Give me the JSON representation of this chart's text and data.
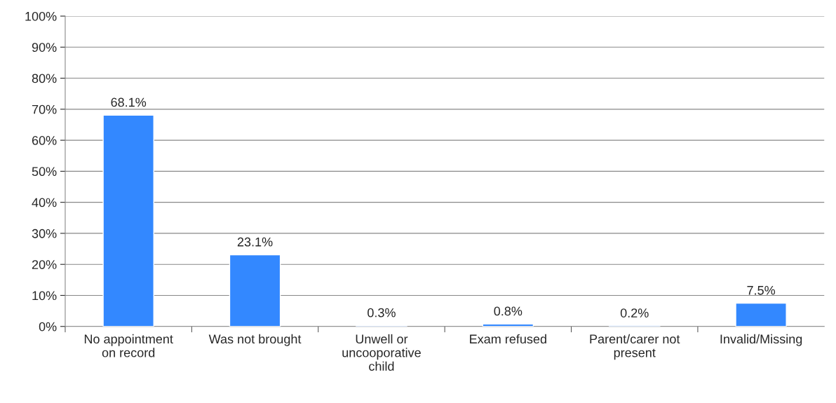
{
  "chart_data": {
    "type": "bar",
    "categories": [
      "No appointment\non record",
      "Was not brought",
      "Unwell or\nuncooporative\nchild",
      "Exam refused",
      "Parent/carer not\npresent",
      "Invalid/Missing"
    ],
    "values": [
      68.1,
      23.1,
      0.3,
      0.8,
      0.2,
      7.5
    ],
    "value_labels": [
      "68.1%",
      "23.1%",
      "0.3%",
      "0.8%",
      "0.2%",
      "7.5%"
    ],
    "color": "#3388ff",
    "ylim": [
      0,
      100
    ],
    "yticks": [
      {
        "value": 0,
        "label": "0%"
      },
      {
        "value": 10,
        "label": "10%"
      },
      {
        "value": 20,
        "label": "20%"
      },
      {
        "value": 30,
        "label": "30%"
      },
      {
        "value": 40,
        "label": "40%"
      },
      {
        "value": 50,
        "label": "50%"
      },
      {
        "value": 60,
        "label": "60%"
      },
      {
        "value": 70,
        "label": "70%"
      },
      {
        "value": 80,
        "label": "80%"
      },
      {
        "value": 90,
        "label": "90%"
      },
      {
        "value": 100,
        "label": "100%"
      }
    ],
    "grid": "y"
  }
}
